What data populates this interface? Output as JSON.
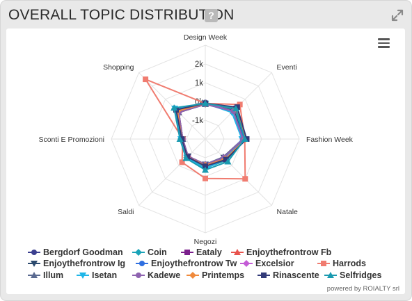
{
  "header": {
    "title": "OVERALL TOPIC DISTRIBUTION",
    "help_label": "?"
  },
  "credit": "powered by ROIALTY srl",
  "chart_data": {
    "type": "radar",
    "categories": [
      "Design Week",
      "Eventi",
      "Fashion Week",
      "Natale",
      "Negozi",
      "Saldi",
      "Sconti E Promozioni",
      "Shopping"
    ],
    "radial_axis": {
      "min": -2000,
      "max": 3000,
      "tick_labels": [
        "-1k",
        "0k",
        "1k",
        "2k"
      ],
      "tick_values": [
        -1000,
        0,
        1000,
        2000
      ]
    },
    "series": [
      {
        "name": "Bergdorf Goodman",
        "color": "#3b3f8f",
        "marker": "circle",
        "values": [
          -50,
          100,
          0,
          -550,
          -600,
          -650,
          -750,
          200
        ]
      },
      {
        "name": "Coin",
        "color": "#1aa3b8",
        "marker": "diamond",
        "values": [
          -100,
          200,
          150,
          -400,
          -450,
          -600,
          -700,
          300
        ]
      },
      {
        "name": "Eataly",
        "color": "#7b1f8c",
        "marker": "square",
        "values": [
          -100,
          300,
          200,
          -500,
          -600,
          -700,
          -800,
          100
        ]
      },
      {
        "name": "Enjoythefrontrow Fb",
        "color": "#e8534d",
        "marker": "triangle",
        "values": [
          -150,
          150,
          0,
          -600,
          -650,
          -700,
          -800,
          0
        ]
      },
      {
        "name": "Enjoythefrontrow Ig",
        "color": "#2c4a6e",
        "marker": "triangle-down",
        "values": [
          -150,
          150,
          50,
          -600,
          -650,
          -700,
          -800,
          0
        ]
      },
      {
        "name": "Enjoythefrontrow Tw",
        "color": "#2f6fe0",
        "marker": "circle",
        "values": [
          -100,
          100,
          50,
          -550,
          -600,
          -650,
          -750,
          100
        ]
      },
      {
        "name": "Excelsior",
        "color": "#c45cd6",
        "marker": "diamond",
        "values": [
          -100,
          100,
          0,
          -600,
          -650,
          -700,
          -800,
          0
        ]
      },
      {
        "name": "Harrods",
        "color": "#f07c70",
        "marker": "square",
        "values": [
          -100,
          600,
          100,
          1000,
          100,
          -250,
          -800,
          2500
        ]
      },
      {
        "name": "Illum",
        "color": "#5a6a90",
        "marker": "triangle",
        "values": [
          -150,
          100,
          0,
          -650,
          -650,
          -700,
          -800,
          0
        ]
      },
      {
        "name": "Isetan",
        "color": "#1fb6e8",
        "marker": "triangle-down",
        "values": [
          -100,
          0,
          -50,
          -500,
          -400,
          -600,
          -700,
          300
        ]
      },
      {
        "name": "Kadewe",
        "color": "#8e63b0",
        "marker": "circle",
        "values": [
          -150,
          100,
          0,
          -600,
          -650,
          -700,
          -800,
          0
        ]
      },
      {
        "name": "Printemps",
        "color": "#f08a3c",
        "marker": "diamond",
        "values": [
          -100,
          300,
          150,
          -500,
          -600,
          -650,
          -750,
          100
        ]
      },
      {
        "name": "Rinascente",
        "color": "#323a78",
        "marker": "square",
        "values": [
          -100,
          400,
          200,
          -450,
          -550,
          -650,
          -750,
          200
        ]
      },
      {
        "name": "Selfridges",
        "color": "#1a9ab0",
        "marker": "triangle",
        "values": [
          -100,
          300,
          100,
          -300,
          -350,
          -550,
          -650,
          350
        ]
      }
    ],
    "legend_position": "bottom",
    "grid": true
  }
}
